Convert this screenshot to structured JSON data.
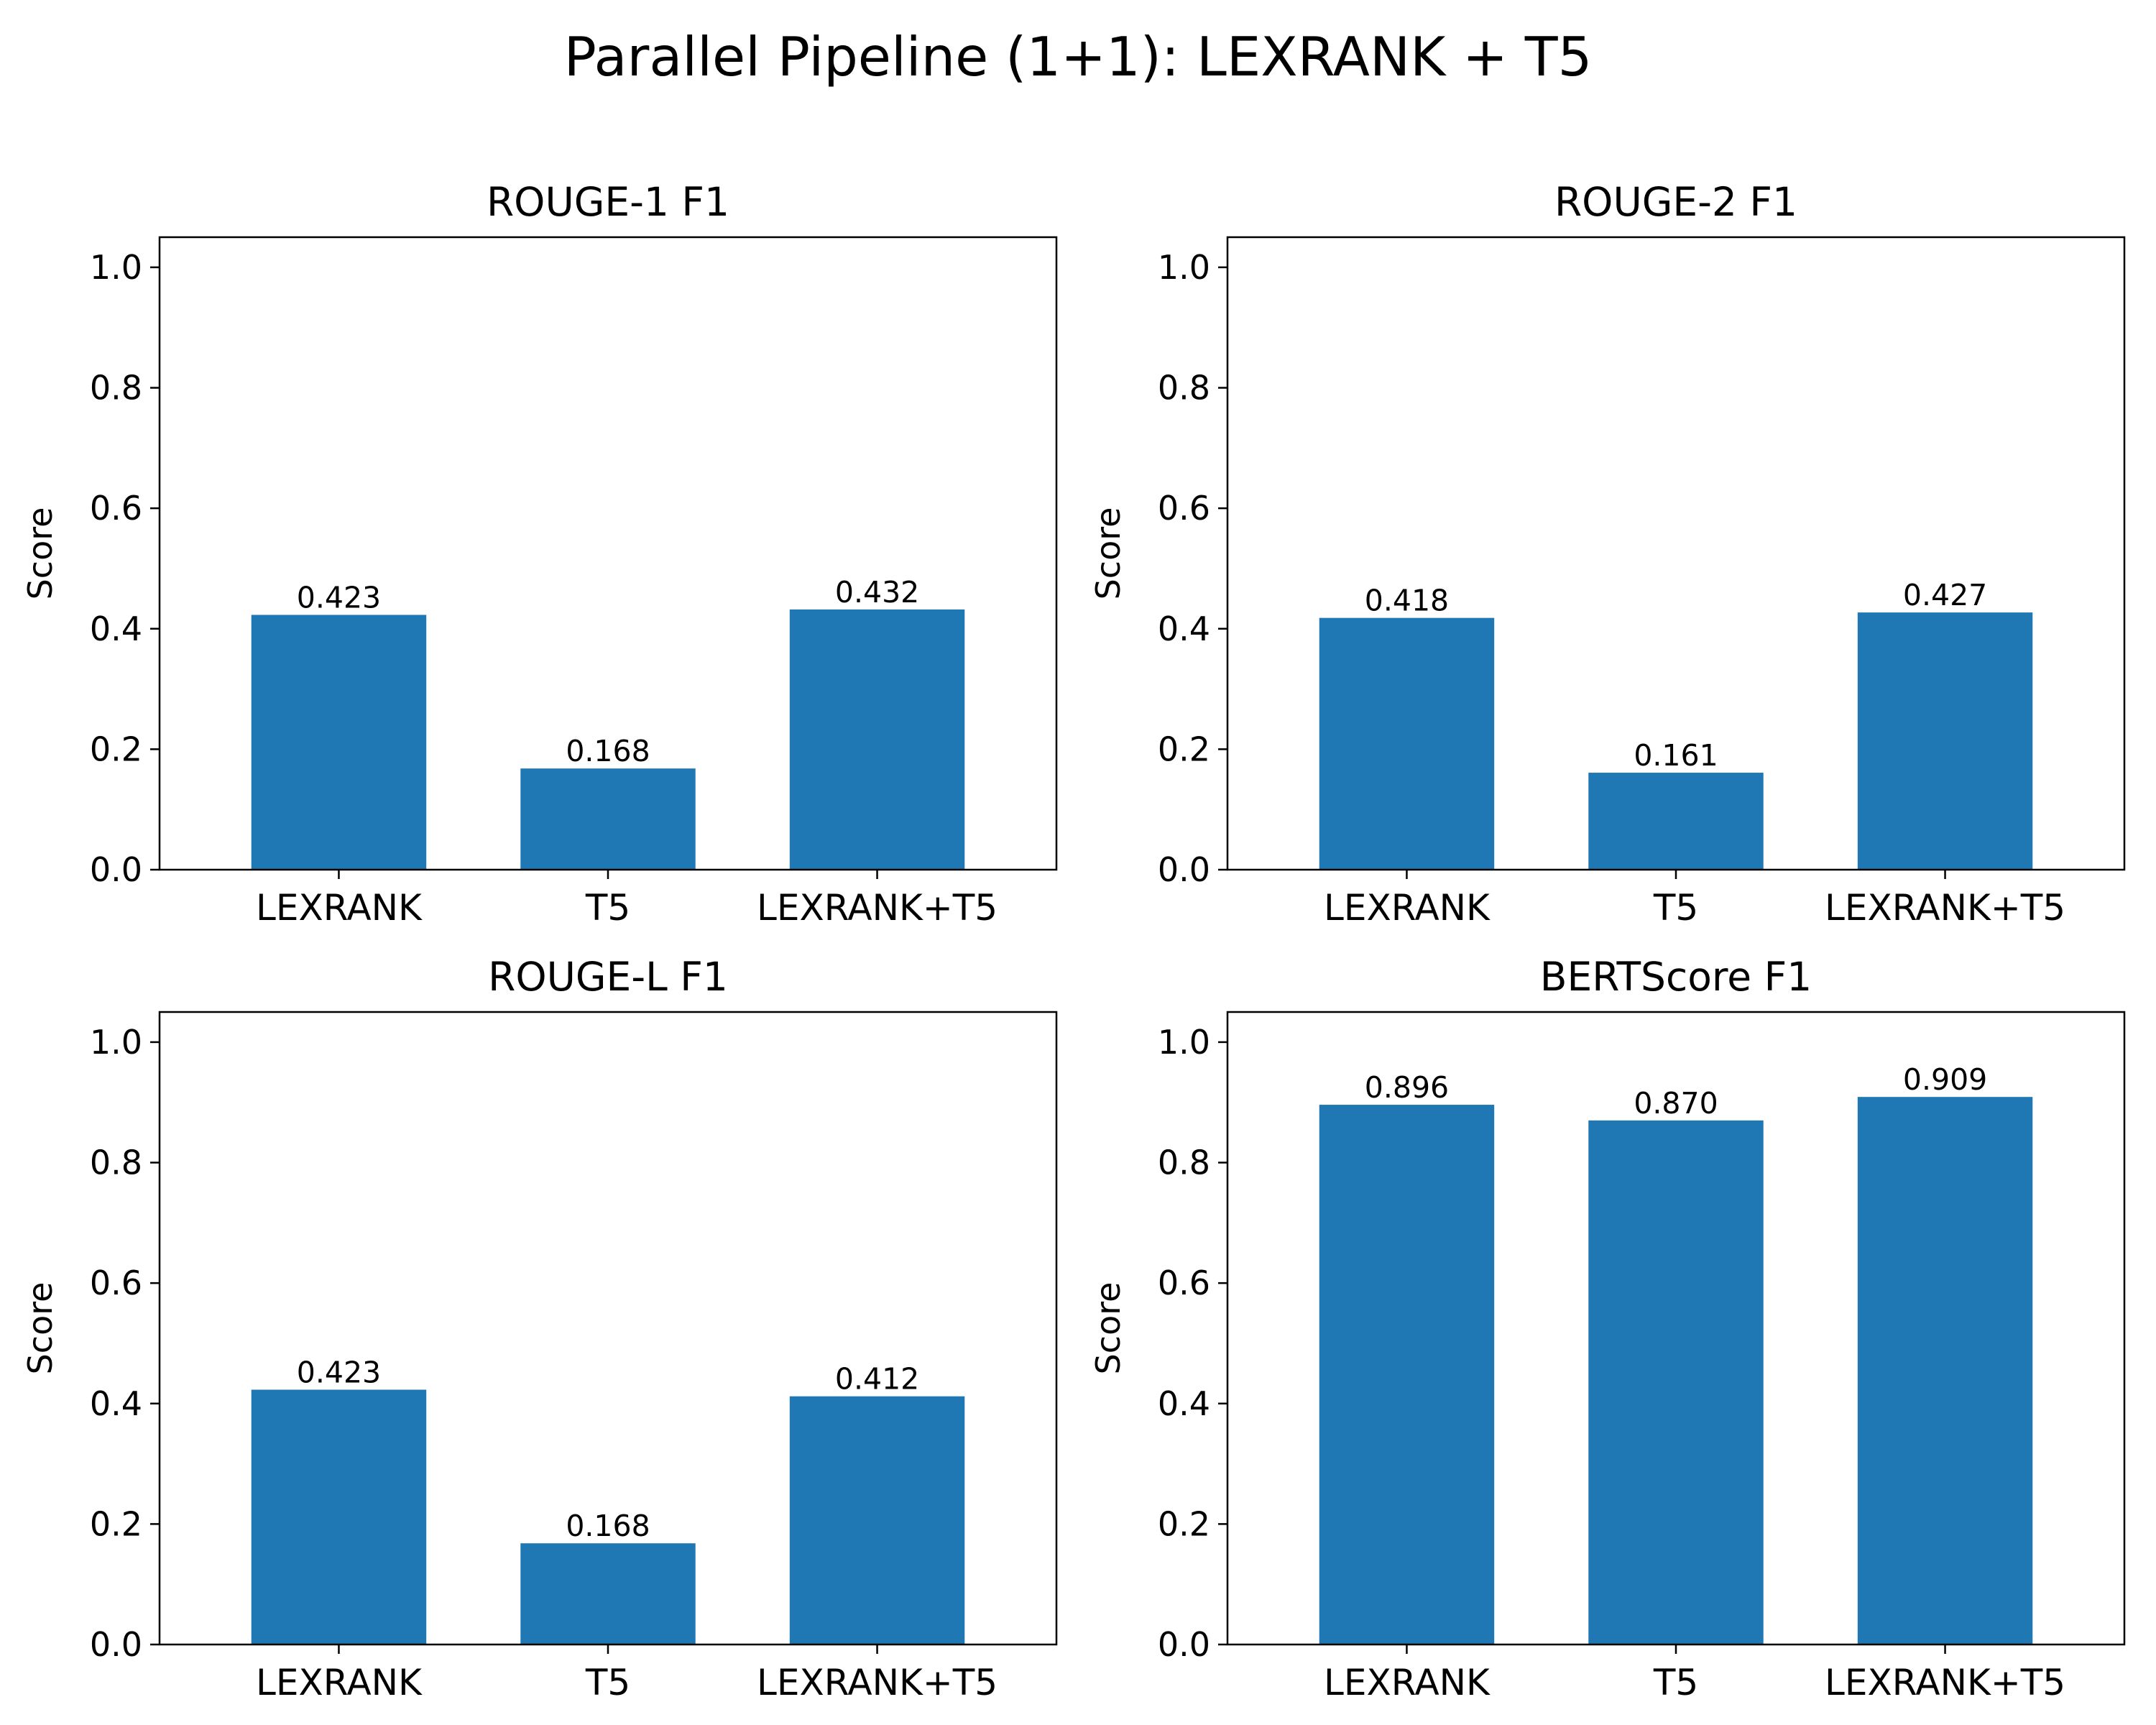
{
  "figure_title": "Parallel Pipeline (1+1): LEXRANK + T5",
  "chart_data": [
    {
      "type": "bar",
      "title": "ROUGE-1 F1",
      "categories": [
        "LEXRANK",
        "T5",
        "LEXRANK+T5"
      ],
      "values": [
        0.423,
        0.168,
        0.432
      ],
      "data_labels": [
        "0.423",
        "0.168",
        "0.432"
      ],
      "xlabel": "",
      "ylabel": "Score",
      "ylim": [
        0,
        1.05
      ],
      "yticks": [
        "0.0",
        "0.2",
        "0.4",
        "0.6",
        "0.8",
        "1.0"
      ],
      "grid": false,
      "bar_color": "#1f77b4"
    },
    {
      "type": "bar",
      "title": "ROUGE-2 F1",
      "categories": [
        "LEXRANK",
        "T5",
        "LEXRANK+T5"
      ],
      "values": [
        0.418,
        0.161,
        0.427
      ],
      "data_labels": [
        "0.418",
        "0.161",
        "0.427"
      ],
      "xlabel": "",
      "ylabel": "Score",
      "ylim": [
        0,
        1.05
      ],
      "yticks": [
        "0.0",
        "0.2",
        "0.4",
        "0.6",
        "0.8",
        "1.0"
      ],
      "grid": false,
      "bar_color": "#1f77b4"
    },
    {
      "type": "bar",
      "title": "ROUGE-L F1",
      "categories": [
        "LEXRANK",
        "T5",
        "LEXRANK+T5"
      ],
      "values": [
        0.423,
        0.168,
        0.412
      ],
      "data_labels": [
        "0.423",
        "0.168",
        "0.412"
      ],
      "xlabel": "",
      "ylabel": "Score",
      "ylim": [
        0,
        1.05
      ],
      "yticks": [
        "0.0",
        "0.2",
        "0.4",
        "0.6",
        "0.8",
        "1.0"
      ],
      "grid": false,
      "bar_color": "#1f77b4"
    },
    {
      "type": "bar",
      "title": "BERTScore F1",
      "categories": [
        "LEXRANK",
        "T5",
        "LEXRANK+T5"
      ],
      "values": [
        0.896,
        0.87,
        0.909
      ],
      "data_labels": [
        "0.896",
        "0.870",
        "0.909"
      ],
      "xlabel": "",
      "ylabel": "Score",
      "ylim": [
        0,
        1.05
      ],
      "yticks": [
        "0.0",
        "0.2",
        "0.4",
        "0.6",
        "0.8",
        "1.0"
      ],
      "grid": false,
      "bar_color": "#1f77b4"
    }
  ]
}
